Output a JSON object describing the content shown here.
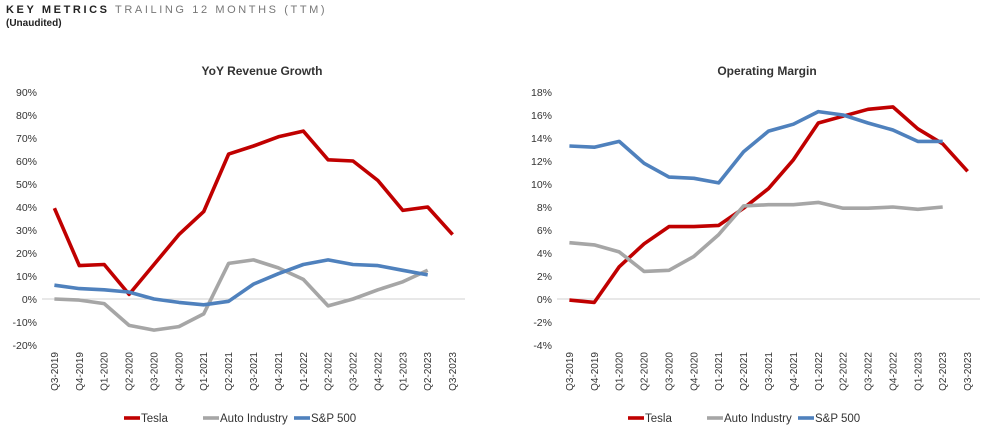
{
  "header": {
    "title_strong": "KEY METRICS",
    "title_light": "TRAILING 12 MONTHS (TTM)",
    "subtitle": "(Unaudited)"
  },
  "chart_data": [
    {
      "type": "line",
      "title": "YoY Revenue Growth",
      "xlabel": "",
      "ylabel": "",
      "y_format": "percent",
      "ylim": [
        -20,
        90
      ],
      "y_ticks": [
        -20,
        -10,
        0,
        10,
        20,
        30,
        40,
        50,
        60,
        70,
        80,
        90
      ],
      "categories": [
        "Q3-2019",
        "Q4-2019",
        "Q1-2020",
        "Q2-2020",
        "Q3-2020",
        "Q4-2020",
        "Q1-2021",
        "Q2-2021",
        "Q3-2021",
        "Q4-2021",
        "Q1-2022",
        "Q2-2022",
        "Q3-2022",
        "Q4-2022",
        "Q1-2023",
        "Q2-2023",
        "Q3-2023"
      ],
      "grid": false,
      "legend": "bottom",
      "series": [
        {
          "name": "Tesla",
          "color": "#c00000",
          "values": [
            39.5,
            14.5,
            15,
            2,
            15,
            28,
            38,
            63,
            66.5,
            70.5,
            73,
            60.5,
            60,
            51.5,
            38.5,
            40,
            28
          ]
        },
        {
          "name": "Auto Industry",
          "color": "#a6a6a6",
          "values": [
            0,
            -0.5,
            -2,
            -11.5,
            -13.5,
            -12,
            -6.5,
            15.5,
            17,
            13.5,
            8.5,
            -3,
            0,
            4,
            7.5,
            12.5,
            null
          ]
        },
        {
          "name": "S&P 500",
          "color": "#4f81bd",
          "values": [
            6,
            4.5,
            4,
            3,
            0,
            -1.5,
            -2.5,
            -1,
            6.5,
            11,
            15,
            17,
            15,
            14.5,
            12.5,
            10.5,
            null
          ]
        }
      ]
    },
    {
      "type": "line",
      "title": "Operating Margin",
      "xlabel": "",
      "ylabel": "",
      "y_format": "percent",
      "ylim": [
        -4,
        18
      ],
      "y_ticks": [
        -4,
        -2,
        0,
        2,
        4,
        6,
        8,
        10,
        12,
        14,
        16,
        18
      ],
      "categories": [
        "Q3-2019",
        "Q4-2019",
        "Q1-2020",
        "Q2-2020",
        "Q3-2020",
        "Q4-2020",
        "Q1-2021",
        "Q2-2021",
        "Q3-2021",
        "Q4-2021",
        "Q1-2022",
        "Q2-2022",
        "Q3-2022",
        "Q4-2022",
        "Q1-2023",
        "Q2-2023",
        "Q3-2023"
      ],
      "grid": false,
      "legend": "bottom",
      "series": [
        {
          "name": "Tesla",
          "color": "#c00000",
          "values": [
            -0.1,
            -0.3,
            2.8,
            4.8,
            6.3,
            6.3,
            6.4,
            7.9,
            9.6,
            12.1,
            15.3,
            15.9,
            16.5,
            16.7,
            14.8,
            13.5,
            11.1
          ]
        },
        {
          "name": "Auto Industry",
          "color": "#a6a6a6",
          "values": [
            4.9,
            4.7,
            4.1,
            2.4,
            2.5,
            3.7,
            5.6,
            8.1,
            8.2,
            8.2,
            8.4,
            7.9,
            7.9,
            8.0,
            7.8,
            8.0,
            null
          ]
        },
        {
          "name": "S&P 500",
          "color": "#4f81bd",
          "values": [
            13.3,
            13.2,
            13.7,
            11.8,
            10.6,
            10.5,
            10.1,
            12.8,
            14.6,
            15.2,
            16.3,
            16.0,
            15.3,
            14.7,
            13.7,
            13.7,
            null
          ]
        }
      ]
    }
  ]
}
